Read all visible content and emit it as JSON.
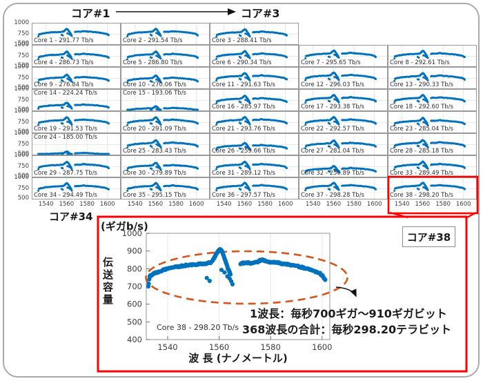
{
  "header": {
    "from_label": "コア#1",
    "to_label": "コア#3"
  },
  "grid": {
    "corner_label": "コア#34",
    "row_yticks": [
      "1000",
      "750",
      "500"
    ],
    "col_xticks": [
      "1540",
      "1560",
      "1580",
      "1600"
    ]
  },
  "callout": {
    "label": "コア#38"
  },
  "zoom_plot": {
    "unit": "(ギガb/s)",
    "ylabel": "伝送容量",
    "xlabel": "波 長 (ナノメートル)",
    "inplot_label": "Core 38 - 298.20 Tb/s",
    "annotation1": "1波長：毎秒700ギガ～910ギガビット",
    "annotation2": "368波長の合計：毎秒298.20テラビット",
    "yticks": [
      "1000",
      "900",
      "800",
      "700",
      "600",
      "500",
      "400"
    ],
    "xticks": [
      "1540",
      "1560",
      "1580",
      "1600"
    ]
  },
  "colors": {
    "point_blue": "#0072BD",
    "ellipse_orange": "#D95319",
    "callout_red": "#FF0000",
    "grid_light": "#dcdcdc",
    "axis_gray": "#a5a5a5",
    "tick_text": "#3c3c3c"
  },
  "chart_data": {
    "type": "scatter",
    "subplots": [
      {
        "label": "Core 1 - 291.77 Tb/s",
        "total_tbps": 291.77
      },
      {
        "label": "Core 2 - 291.54 Tb/s",
        "total_tbps": 291.54
      },
      {
        "label": "Core 3 - 288.41 Tb/s",
        "total_tbps": 288.41
      },
      {
        "label": "Core 4 - 286.73 Tb/s",
        "total_tbps": 286.73
      },
      {
        "label": "Core 5 - 286.80 Tb/s",
        "total_tbps": 286.8
      },
      {
        "label": "Core 6 - 290.34 Tb/s",
        "total_tbps": 290.34
      },
      {
        "label": "Core 7 - 295.65 Tb/s",
        "total_tbps": 295.65
      },
      {
        "label": "Core 8 - 292.61 Tb/s",
        "total_tbps": 292.61
      },
      {
        "label": "Core 9 - 276.84 Tb/s",
        "total_tbps": 276.84
      },
      {
        "label": "Core 10 - 270.06 Tb/s",
        "total_tbps": 270.06
      },
      {
        "label": "Core 11 - 291.63 Tb/s",
        "total_tbps": 291.63
      },
      {
        "label": "Core 12 - 296.03 Tb/s",
        "total_tbps": 296.03
      },
      {
        "label": "Core 13 - 290.33 Tb/s",
        "total_tbps": 290.33
      },
      {
        "label": "Core 14 - 224.24 Tb/s",
        "total_tbps": 224.24,
        "label_top": true
      },
      {
        "label": "Core 15 - 193.06 Tb/s",
        "total_tbps": 193.06,
        "label_top": true
      },
      {
        "label": "Core 16 - 285.97 Tb/s",
        "total_tbps": 285.97
      },
      {
        "label": "Core 17 - 293.38 Tb/s",
        "total_tbps": 293.38
      },
      {
        "label": "Core 18 - 292.60 Tb/s",
        "total_tbps": 292.6
      },
      {
        "label": "Core 19 - 291.53 Tb/s",
        "total_tbps": 291.53
      },
      {
        "label": "Core 20 - 291.09 Tb/s",
        "total_tbps": 291.09
      },
      {
        "label": "Core 21 - 293.76 Tb/s",
        "total_tbps": 293.76
      },
      {
        "label": "Core 22 - 292.57 Tb/s",
        "total_tbps": 292.57
      },
      {
        "label": "Core 23 - 285.04 Tb/s",
        "total_tbps": 285.04
      },
      {
        "label": "Core 24 - 185.00 Tb/s",
        "total_tbps": 185.0,
        "label_top": true
      },
      {
        "label": "Core 25 - 283.43 Tb/s",
        "total_tbps": 283.43
      },
      {
        "label": "Core 26 - 259.66 Tb/s",
        "total_tbps": 259.66
      },
      {
        "label": "Core 27 - 281.04 Tb/s",
        "total_tbps": 281.04
      },
      {
        "label": "Core 28 - 285.18 Tb/s",
        "total_tbps": 285.18
      },
      {
        "label": "Core 29 - 287.75 Tb/s",
        "total_tbps": 287.75
      },
      {
        "label": "Core 30 - 279.89 Tb/s",
        "total_tbps": 279.89
      },
      {
        "label": "Core 31 - 289.12 Tb/s",
        "total_tbps": 289.12
      },
      {
        "label": "Core 32 - 250.89 Tb/s",
        "total_tbps": 250.89
      },
      {
        "label": "Core 33 - 289.49 Tb/s",
        "total_tbps": 289.49
      },
      {
        "label": "Core 34 - 294.49 Tb/s",
        "total_tbps": 294.49
      },
      {
        "label": "Core 35 - 295.15 Tb/s",
        "total_tbps": 295.15
      },
      {
        "label": "Core 36 - 297.57 Tb/s",
        "total_tbps": 297.57
      },
      {
        "label": "Core 37 - 298.28 Tb/s",
        "total_tbps": 298.28
      },
      {
        "label": "Core 38 - 298.20 Tb/s",
        "total_tbps": 298.2
      }
    ],
    "subplot_axes": {
      "xticks": [
        1540,
        1560,
        1580,
        1600
      ],
      "yticks": [
        1000,
        750,
        500
      ],
      "xlim": [
        1526,
        1613
      ],
      "ylim": [
        480,
        1055
      ],
      "x_unit": "nm",
      "y_unit": "Gb/s"
    },
    "zoom": {
      "label": "Core 38 - 298.20 Tb/s",
      "core": 38,
      "total_tbps": 298.2,
      "num_wavelengths": 368,
      "per_channel_gbps_min": 700,
      "per_channel_gbps_max": 910,
      "xlim": [
        1529,
        1604
      ],
      "ylim": [
        400,
        1000
      ],
      "xticks": [
        1540,
        1560,
        1580,
        1600
      ],
      "yticks": [
        400,
        500,
        600,
        700,
        800,
        900,
        1000
      ],
      "points_main": [
        [
          1532.5,
          700
        ],
        [
          1533,
          756
        ],
        [
          1533.4,
          762
        ],
        [
          1533.8,
          766
        ],
        [
          1534.3,
          770
        ],
        [
          1534.8,
          773
        ],
        [
          1535.4,
          776
        ],
        [
          1536,
          779
        ],
        [
          1536.7,
          783
        ],
        [
          1537.4,
          787
        ],
        [
          1538.1,
          791
        ],
        [
          1538.8,
          795
        ],
        [
          1539.5,
          798
        ],
        [
          1540.2,
          801
        ],
        [
          1541,
          804
        ],
        [
          1541.8,
          807
        ],
        [
          1542.6,
          809
        ],
        [
          1543.4,
          811
        ],
        [
          1544.2,
          813
        ],
        [
          1545,
          815
        ],
        [
          1545.8,
          816
        ],
        [
          1546.6,
          818
        ],
        [
          1547.4,
          819
        ],
        [
          1548.2,
          820
        ],
        [
          1549,
          821
        ],
        [
          1549.8,
          822
        ],
        [
          1550.6,
          823
        ],
        [
          1551.4,
          824
        ],
        [
          1552.2,
          825
        ],
        [
          1553,
          826
        ],
        [
          1553.8,
          828
        ],
        [
          1554.6,
          830
        ],
        [
          1555.4,
          831
        ],
        [
          1556.2,
          833
        ],
        [
          1556.9,
          838
        ],
        [
          1557.5,
          846
        ],
        [
          1558,
          858
        ],
        [
          1558.4,
          870
        ],
        [
          1558.8,
          882
        ],
        [
          1559.2,
          892
        ],
        [
          1559.6,
          900
        ],
        [
          1560,
          906
        ],
        [
          1560.4,
          910
        ],
        [
          1560.8,
          905
        ],
        [
          1561.2,
          894
        ],
        [
          1561.6,
          878
        ],
        [
          1562,
          862
        ],
        [
          1562.4,
          846
        ],
        [
          1562.8,
          830
        ],
        [
          1563.2,
          812
        ],
        [
          1563.6,
          796
        ],
        [
          1564,
          780
        ],
        [
          1564.4,
          768
        ],
        [
          1568.3,
          826
        ],
        [
          1568.8,
          830
        ],
        [
          1569.4,
          833
        ],
        [
          1570,
          834
        ],
        [
          1570.8,
          834
        ],
        [
          1571.6,
          833
        ],
        [
          1572.4,
          832
        ],
        [
          1573.2,
          833
        ],
        [
          1574,
          835
        ],
        [
          1574.8,
          838
        ],
        [
          1575.6,
          843
        ],
        [
          1576.2,
          849
        ],
        [
          1576.8,
          852
        ],
        [
          1577.4,
          848
        ],
        [
          1578,
          844
        ],
        [
          1578.8,
          841
        ],
        [
          1579.6,
          839
        ],
        [
          1580.4,
          837
        ],
        [
          1581.2,
          835
        ],
        [
          1582,
          834
        ],
        [
          1582.8,
          833
        ],
        [
          1583.6,
          831
        ],
        [
          1584.4,
          830
        ],
        [
          1585.2,
          828
        ],
        [
          1586,
          826
        ],
        [
          1586.8,
          824
        ],
        [
          1587.6,
          822
        ],
        [
          1588.4,
          820
        ],
        [
          1589.2,
          818
        ],
        [
          1590,
          816
        ],
        [
          1590.8,
          813
        ],
        [
          1591.6,
          810
        ],
        [
          1592.4,
          807
        ],
        [
          1593.2,
          804
        ],
        [
          1594,
          800
        ],
        [
          1594.8,
          797
        ],
        [
          1595.6,
          793
        ],
        [
          1596.4,
          789
        ],
        [
          1597.2,
          785
        ],
        [
          1598,
          781
        ],
        [
          1598.8,
          776
        ],
        [
          1599.4,
          770
        ],
        [
          1600,
          762
        ],
        [
          1600.5,
          752
        ],
        [
          1601,
          743
        ]
      ],
      "points_outliers": [
        [
          1555.2,
          748
        ],
        [
          1556.3,
          731
        ],
        [
          1560.9,
          793
        ],
        [
          1562.1,
          779
        ],
        [
          1563.2,
          757
        ],
        [
          1564.1,
          744
        ],
        [
          1564.7,
          729
        ],
        [
          1565.2,
          712
        ],
        [
          1601.2,
          737
        ]
      ]
    }
  }
}
